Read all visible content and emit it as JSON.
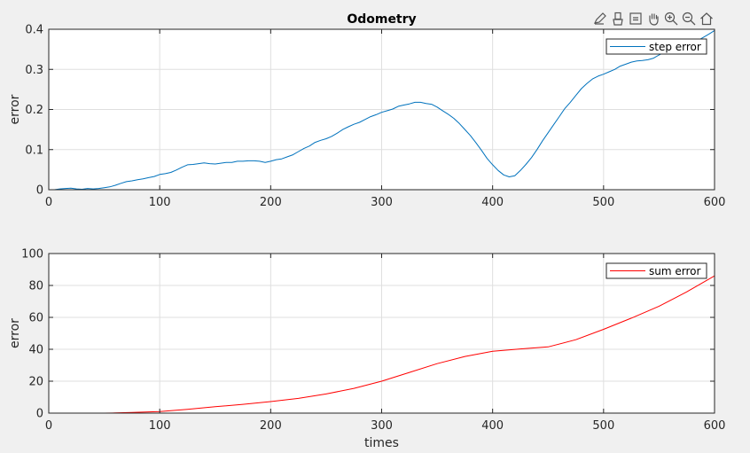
{
  "toolbar": {
    "icons": [
      "edit-icon",
      "brush-icon",
      "data-tip-icon",
      "pan-icon",
      "zoom-in-icon",
      "zoom-out-icon",
      "home-icon"
    ]
  },
  "chart_data": [
    {
      "type": "line",
      "title": "Odometry",
      "xlabel": "",
      "ylabel": "error",
      "xlim": [
        0,
        600
      ],
      "ylim": [
        0,
        0.4
      ],
      "xticks": [
        "0",
        "100",
        "200",
        "300",
        "400",
        "500",
        "600"
      ],
      "yticks": [
        "0",
        "0.1",
        "0.2",
        "0.3",
        "0.4"
      ],
      "grid": true,
      "legend_position": "top-right",
      "series": [
        {
          "name": "step error",
          "color": "#0072bd",
          "x": [
            5,
            10,
            15,
            20,
            25,
            30,
            35,
            40,
            45,
            50,
            55,
            60,
            65,
            70,
            75,
            80,
            85,
            90,
            95,
            100,
            105,
            110,
            115,
            120,
            125,
            130,
            135,
            140,
            145,
            150,
            155,
            160,
            165,
            170,
            175,
            180,
            185,
            190,
            195,
            200,
            205,
            210,
            215,
            220,
            225,
            230,
            235,
            240,
            245,
            250,
            255,
            260,
            265,
            270,
            275,
            280,
            285,
            290,
            295,
            300,
            305,
            310,
            315,
            320,
            325,
            330,
            335,
            340,
            345,
            350,
            355,
            360,
            365,
            370,
            375,
            380,
            385,
            390,
            395,
            400,
            405,
            410,
            415,
            420,
            425,
            430,
            435,
            440,
            445,
            450,
            455,
            460,
            465,
            470,
            475,
            480,
            485,
            490,
            495,
            500,
            505,
            510,
            515,
            520,
            525,
            530,
            535,
            540,
            545,
            550,
            555,
            560,
            565,
            570,
            575,
            580,
            585,
            590,
            595,
            600
          ],
          "y": [
            0.0,
            0.002,
            0.003,
            0.004,
            0.002,
            0.001,
            0.003,
            0.002,
            0.003,
            0.005,
            0.007,
            0.011,
            0.016,
            0.02,
            0.022,
            0.025,
            0.027,
            0.03,
            0.033,
            0.038,
            0.04,
            0.043,
            0.049,
            0.056,
            0.062,
            0.063,
            0.065,
            0.067,
            0.065,
            0.064,
            0.066,
            0.068,
            0.068,
            0.071,
            0.071,
            0.072,
            0.072,
            0.071,
            0.068,
            0.071,
            0.075,
            0.077,
            0.082,
            0.087,
            0.095,
            0.103,
            0.109,
            0.118,
            0.123,
            0.127,
            0.133,
            0.141,
            0.15,
            0.157,
            0.163,
            0.168,
            0.175,
            0.182,
            0.187,
            0.193,
            0.197,
            0.201,
            0.208,
            0.211,
            0.214,
            0.218,
            0.218,
            0.215,
            0.213,
            0.206,
            0.197,
            0.188,
            0.178,
            0.165,
            0.15,
            0.135,
            0.117,
            0.098,
            0.078,
            0.062,
            0.048,
            0.037,
            0.032,
            0.035,
            0.048,
            0.063,
            0.08,
            0.1,
            0.122,
            0.142,
            0.162,
            0.182,
            0.202,
            0.218,
            0.235,
            0.252,
            0.265,
            0.276,
            0.283,
            0.288,
            0.294,
            0.3,
            0.308,
            0.313,
            0.318,
            0.321,
            0.322,
            0.324,
            0.328,
            0.336,
            0.343,
            0.348,
            0.352,
            0.355,
            0.36,
            0.365,
            0.372,
            0.38,
            0.388,
            0.397
          ]
        },
        {
          "name": "",
          "color": "#77ac30",
          "x": [
            0,
            600
          ],
          "y": [
            0,
            0
          ]
        }
      ]
    },
    {
      "type": "line",
      "title": "",
      "xlabel": "times",
      "ylabel": "error",
      "xlim": [
        0,
        600
      ],
      "ylim": [
        0,
        100
      ],
      "xticks": [
        "0",
        "100",
        "200",
        "300",
        "400",
        "500",
        "600"
      ],
      "yticks": [
        "0",
        "20",
        "40",
        "60",
        "80",
        "100"
      ],
      "grid": true,
      "legend_position": "top-right",
      "series": [
        {
          "name": "sum error",
          "color": "#ff0000",
          "x": [
            0,
            25,
            50,
            60,
            75,
            100,
            125,
            150,
            175,
            200,
            225,
            250,
            275,
            300,
            325,
            350,
            375,
            400,
            425,
            450,
            475,
            500,
            525,
            550,
            575,
            600
          ],
          "y": [
            0.0,
            0.0,
            0.0,
            0.1,
            0.4,
            1.0,
            2.4,
            4.0,
            5.5,
            7.2,
            9.2,
            12.0,
            15.5,
            20.0,
            25.5,
            31.0,
            35.5,
            38.8,
            40.2,
            41.5,
            46.0,
            52.5,
            59.5,
            67.0,
            76.0,
            86.0
          ]
        },
        {
          "name": "",
          "color": "#cc0000",
          "x": [
            0,
            600
          ],
          "y": [
            0,
            0
          ]
        }
      ]
    }
  ]
}
